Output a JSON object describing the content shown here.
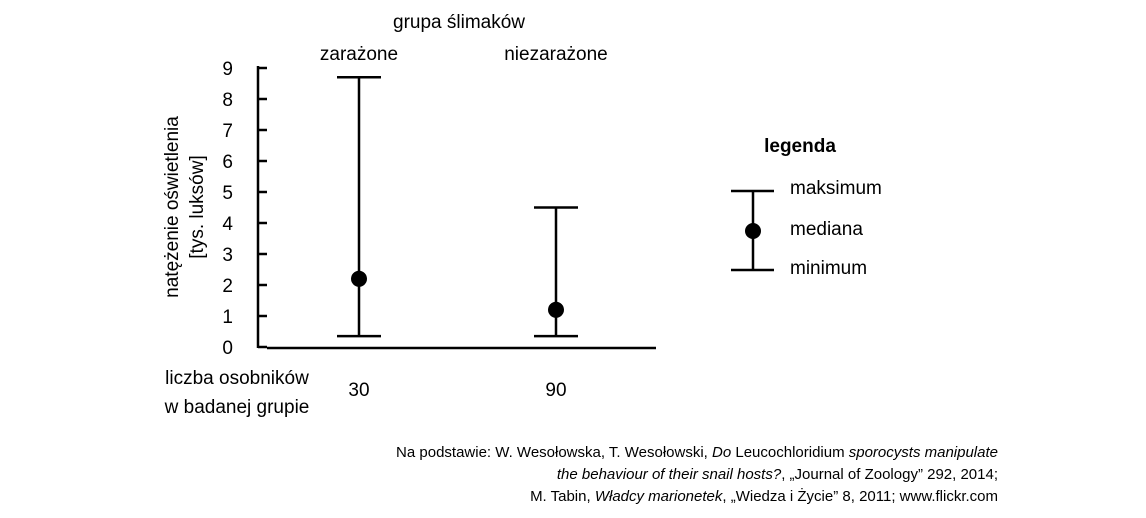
{
  "chart_data": {
    "type": "errorbar",
    "title": "grupa ślimaków",
    "ylabel_line1": "natężenie oświetlenia",
    "ylabel_line2": "[tys. luksów]",
    "ylim": [
      0,
      9
    ],
    "yticks": [
      "0",
      "1",
      "2",
      "3",
      "4",
      "5",
      "6",
      "7",
      "8",
      "9"
    ],
    "groups": [
      {
        "name": "zarażone",
        "min": 0.35,
        "median": 2.2,
        "max": 8.7,
        "count": "30"
      },
      {
        "name": "niezarażone",
        "min": 0.35,
        "median": 1.2,
        "max": 4.5,
        "count": "90"
      }
    ],
    "count_label_line1": "liczba osobników",
    "count_label_line2": "w badanej grupie",
    "legend": {
      "title": "legenda",
      "max": "maksimum",
      "median": "mediana",
      "min": "minimum"
    }
  },
  "source": {
    "l1_a": "Na podstawie: W. Wesołowska, T. Wesołowski, ",
    "l1_b": "Do",
    "l1_c": " Leucochloridium ",
    "l1_d": "sporocysts manipulate",
    "l2_a": "the behaviour of their snail hosts?",
    "l2_b": ", „Journal of Zoology” 292, 2014;",
    "l3_a": "M. Tabin, ",
    "l3_b": "Władcy marionetek",
    "l3_c": ", „Wiedza i Życie” 8, 2011; www.flickr.com"
  }
}
